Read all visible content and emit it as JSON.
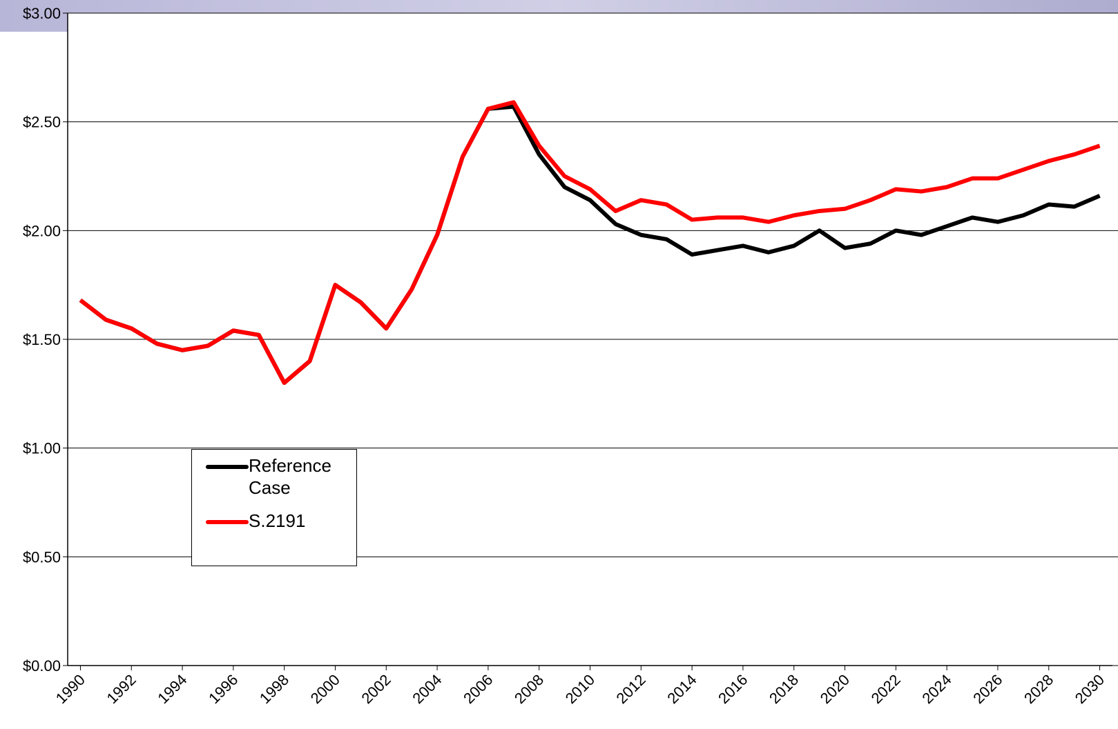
{
  "chart_data": {
    "type": "line",
    "x": [
      1990,
      1991,
      1992,
      1993,
      1994,
      1995,
      1996,
      1997,
      1998,
      1999,
      2000,
      2001,
      2002,
      2003,
      2004,
      2005,
      2006,
      2007,
      2008,
      2009,
      2010,
      2011,
      2012,
      2013,
      2014,
      2015,
      2016,
      2017,
      2018,
      2019,
      2020,
      2021,
      2022,
      2023,
      2024,
      2025,
      2026,
      2027,
      2028,
      2029,
      2030
    ],
    "series": [
      {
        "name": "Reference Case",
        "color": "#000000",
        "values": [
          1.68,
          1.59,
          1.55,
          1.48,
          1.45,
          1.47,
          1.54,
          1.52,
          1.3,
          1.4,
          1.75,
          1.67,
          1.55,
          1.73,
          1.98,
          2.34,
          2.56,
          2.57,
          2.35,
          2.2,
          2.14,
          2.03,
          1.98,
          1.96,
          1.89,
          1.91,
          1.93,
          1.9,
          1.93,
          2.0,
          1.92,
          1.94,
          2.0,
          1.98,
          2.02,
          2.06,
          2.04,
          2.07,
          2.12,
          2.11,
          2.16
        ]
      },
      {
        "name": "S.2191",
        "color": "#ff0000",
        "values": [
          1.68,
          1.59,
          1.55,
          1.48,
          1.45,
          1.47,
          1.54,
          1.52,
          1.3,
          1.4,
          1.75,
          1.67,
          1.55,
          1.73,
          1.98,
          2.34,
          2.56,
          2.59,
          2.39,
          2.25,
          2.19,
          2.09,
          2.14,
          2.12,
          2.05,
          2.06,
          2.06,
          2.04,
          2.07,
          2.09,
          2.1,
          2.14,
          2.19,
          2.18,
          2.2,
          2.24,
          2.24,
          2.28,
          2.32,
          2.35,
          2.39
        ]
      }
    ],
    "xlim": [
      1989.5,
      2030.5
    ],
    "xticks": [
      1990,
      1992,
      1994,
      1996,
      1998,
      2000,
      2002,
      2004,
      2006,
      2008,
      2010,
      2012,
      2014,
      2016,
      2018,
      2020,
      2022,
      2024,
      2026,
      2028,
      2030
    ],
    "ylim": [
      0,
      3
    ],
    "yticks": [
      {
        "value": 0,
        "label": "$0.00"
      },
      {
        "value": 0.5,
        "label": "$0.50"
      },
      {
        "value": 1,
        "label": "$1.00"
      },
      {
        "value": 1.5,
        "label": "$1.50"
      },
      {
        "value": 2,
        "label": "$2.00"
      },
      {
        "value": 2.5,
        "label": "$2.50"
      },
      {
        "value": 3,
        "label": "$3.00"
      }
    ],
    "grid": true
  }
}
